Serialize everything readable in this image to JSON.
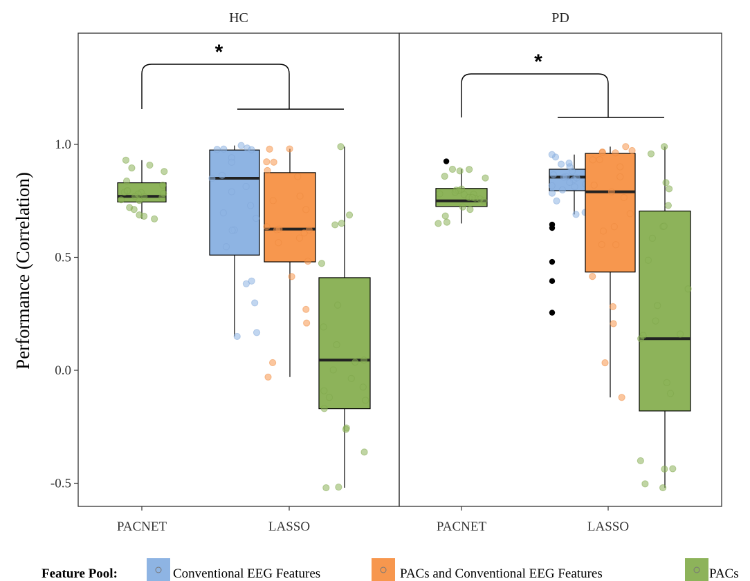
{
  "chart_data": {
    "type": "boxplot",
    "ylabel": "Performance (Correlation)",
    "ylim": [
      -0.6,
      1.6
    ],
    "yticks": [
      -0.5,
      0.0,
      0.5,
      1.0
    ],
    "ytick_labels": [
      "-0.5",
      "0.0",
      "0.5",
      "1.0"
    ],
    "categories": [
      "PACNET",
      "LASSO"
    ],
    "legend": {
      "title": "Feature Pool:",
      "placement": "bottom",
      "items": [
        {
          "label": "Conventional EEG Features",
          "color": "#8eb4e3"
        },
        {
          "label": "PACs and Conventional EEG Features",
          "color": "#f7974e"
        },
        {
          "label": "PACs",
          "color": "#8db35a"
        }
      ]
    },
    "facets": [
      {
        "title": "HC",
        "significance": "*",
        "boxes": [
          {
            "category": "PACNET",
            "pool": "PACs",
            "min": 0.67,
            "q1": 0.745,
            "median": 0.77,
            "q3": 0.83,
            "max": 0.93,
            "outliers": []
          },
          {
            "category": "LASSO",
            "pool": "Conventional EEG Features",
            "min": 0.15,
            "q1": 0.51,
            "median": 0.85,
            "q3": 0.975,
            "max": 0.995,
            "outliers": []
          },
          {
            "category": "LASSO",
            "pool": "PACs and Conventional EEG Features",
            "min": -0.03,
            "q1": 0.48,
            "median": 0.625,
            "q3": 0.875,
            "max": 0.98,
            "outliers": []
          },
          {
            "category": "LASSO",
            "pool": "PACs",
            "min": -0.52,
            "q1": -0.17,
            "median": 0.045,
            "q3": 0.41,
            "max": 0.99,
            "outliers": []
          }
        ]
      },
      {
        "title": "PD",
        "significance": "*",
        "boxes": [
          {
            "category": "PACNET",
            "pool": "PACs",
            "min": 0.65,
            "q1": 0.725,
            "median": 0.75,
            "q3": 0.805,
            "max": 0.89,
            "outliers": [
              0.925
            ]
          },
          {
            "category": "LASSO",
            "pool": "Conventional EEG Features",
            "min": 0.69,
            "q1": 0.795,
            "median": 0.855,
            "q3": 0.89,
            "max": 0.955,
            "outliers": [
              0.645,
              0.63,
              0.48,
              0.395,
              0.255
            ]
          },
          {
            "category": "LASSO",
            "pool": "PACs and Conventional EEG Features",
            "min": -0.12,
            "q1": 0.435,
            "median": 0.79,
            "q3": 0.96,
            "max": 0.99,
            "outliers": []
          },
          {
            "category": "LASSO",
            "pool": "PACs",
            "min": -0.52,
            "q1": -0.18,
            "median": 0.14,
            "q3": 0.705,
            "max": 0.99,
            "outliers": []
          }
        ]
      }
    ]
  }
}
